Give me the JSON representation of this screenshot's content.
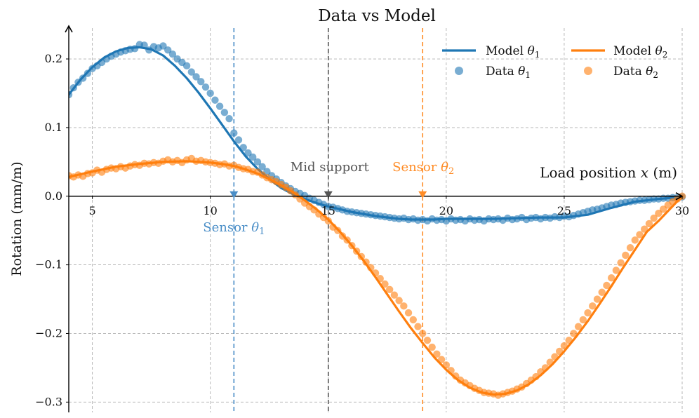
{
  "chart_data": {
    "type": "line",
    "title": "Data vs Model",
    "xlabel": "Load position x (m)",
    "xlabel_parts": [
      "Load position ",
      "x",
      " (m)"
    ],
    "ylabel": "Rotation (mm/m)",
    "xlim": [
      4,
      30
    ],
    "ylim": [
      -0.315,
      0.245
    ],
    "x_ticks": [
      5,
      10,
      15,
      20,
      25,
      30
    ],
    "y_ticks": [
      -0.3,
      -0.2,
      -0.1,
      0.0,
      0.1,
      0.2
    ],
    "y_tick_labels": [
      "−0.3",
      "−0.2",
      "−0.1",
      "0.0",
      "0.1",
      "0.2"
    ],
    "grid": true,
    "legend_placement": "top-right",
    "series": [
      {
        "name": "Model θ1",
        "label_base": "Model ",
        "label_sub": "1",
        "kind": "line",
        "color": "#1f77b4",
        "x": [
          4,
          4.5,
          5,
          5.5,
          6,
          6.5,
          7,
          7.5,
          8,
          8.5,
          9,
          9.5,
          10,
          10.5,
          11,
          11.5,
          12,
          12.5,
          13,
          13.5,
          14,
          14.5,
          15,
          15.5,
          16,
          16.5,
          17,
          17.5,
          18,
          18.5,
          19,
          19.5,
          20,
          21,
          22,
          23,
          24,
          25,
          26,
          27,
          28,
          29,
          30
        ],
        "y": [
          0.148,
          0.17,
          0.188,
          0.202,
          0.211,
          0.216,
          0.217,
          0.214,
          0.205,
          0.19,
          0.172,
          0.151,
          0.128,
          0.104,
          0.08,
          0.058,
          0.04,
          0.025,
          0.012,
          0.003,
          -0.004,
          -0.01,
          -0.015,
          -0.019,
          -0.023,
          -0.026,
          -0.029,
          -0.031,
          -0.033,
          -0.034,
          -0.034,
          -0.034,
          -0.033,
          -0.033,
          -0.033,
          -0.032,
          -0.031,
          -0.031,
          -0.027,
          -0.017,
          -0.008,
          -0.004,
          -0.001
        ]
      },
      {
        "name": "Data θ1",
        "label_base": "Data ",
        "label_sub": "1",
        "kind": "scatter",
        "color": "#1f77b4",
        "x": [
          4.0,
          4.2,
          4.4,
          4.6,
          4.8,
          5.0,
          5.2,
          5.4,
          5.6,
          5.8,
          6.0,
          6.2,
          6.4,
          6.6,
          6.8,
          7.0,
          7.2,
          7.4,
          7.6,
          7.8,
          8.0,
          8.2,
          8.4,
          8.6,
          8.8,
          9.0,
          9.2,
          9.4,
          9.6,
          9.8,
          10.0,
          10.2,
          10.4,
          10.6,
          10.8,
          11.0,
          11.2,
          11.4,
          11.6,
          11.8,
          12.0,
          12.2,
          12.4,
          12.6,
          12.8,
          13.0,
          13.2,
          13.4,
          13.6,
          13.8,
          14.0,
          14.2,
          14.4,
          14.6,
          14.8,
          15.0,
          15.2,
          15.4,
          15.6,
          15.8,
          16.0,
          16.2,
          16.4,
          16.6,
          16.8,
          17.0,
          17.2,
          17.4,
          17.6,
          17.8,
          18.0,
          18.2,
          18.4,
          18.6,
          18.8,
          19.0,
          19.2,
          19.4,
          19.6,
          19.8,
          20.0,
          20.2,
          20.4,
          20.6,
          20.8,
          21.0,
          21.2,
          21.4,
          21.6,
          21.8,
          22.0,
          22.2,
          22.4,
          22.6,
          22.8,
          23.0,
          23.2,
          23.4,
          23.6,
          23.8,
          24.0,
          24.2,
          24.4,
          24.6,
          24.8,
          25.0,
          25.2,
          25.4,
          25.6,
          25.8,
          26.0,
          26.2,
          26.4,
          26.6,
          26.8,
          27.0,
          27.2,
          27.4,
          27.6,
          27.8,
          28.0,
          28.2,
          28.4,
          28.6,
          28.8,
          29.0,
          29.2,
          29.4,
          29.6,
          29.8,
          30.0
        ],
        "y": [
          0.148,
          0.158,
          0.166,
          0.172,
          0.179,
          0.186,
          0.19,
          0.195,
          0.2,
          0.204,
          0.207,
          0.21,
          0.212,
          0.214,
          0.215,
          0.221,
          0.22,
          0.213,
          0.218,
          0.216,
          0.219,
          0.213,
          0.207,
          0.2,
          0.195,
          0.19,
          0.181,
          0.174,
          0.167,
          0.159,
          0.15,
          0.14,
          0.131,
          0.122,
          0.113,
          0.092,
          0.082,
          0.071,
          0.063,
          0.057,
          0.05,
          0.043,
          0.036,
          0.03,
          0.025,
          0.02,
          0.015,
          0.011,
          0.007,
          0.004,
          0.001,
          -0.003,
          -0.006,
          -0.009,
          -0.012,
          -0.015,
          -0.016,
          -0.018,
          -0.02,
          -0.022,
          -0.023,
          -0.024,
          -0.025,
          -0.026,
          -0.027,
          -0.028,
          -0.029,
          -0.03,
          -0.031,
          -0.032,
          -0.033,
          -0.032,
          -0.034,
          -0.033,
          -0.035,
          -0.034,
          -0.036,
          -0.033,
          -0.035,
          -0.034,
          -0.036,
          -0.033,
          -0.035,
          -0.034,
          -0.036,
          -0.033,
          -0.035,
          -0.034,
          -0.036,
          -0.033,
          -0.034,
          -0.033,
          -0.035,
          -0.032,
          -0.034,
          -0.033,
          -0.031,
          -0.034,
          -0.032,
          -0.031,
          -0.033,
          -0.031,
          -0.032,
          -0.03,
          -0.031,
          -0.029,
          -0.03,
          -0.028,
          -0.026,
          -0.024,
          -0.022,
          -0.02,
          -0.019,
          -0.017,
          -0.015,
          -0.013,
          -0.012,
          -0.01,
          -0.009,
          -0.008,
          -0.007,
          -0.006,
          -0.006,
          -0.005,
          -0.004,
          -0.004,
          -0.003,
          -0.003,
          -0.002,
          -0.002,
          -0.001
        ]
      },
      {
        "name": "Model θ2",
        "label_base": "Model ",
        "label_sub": "2",
        "kind": "line",
        "color": "#ff7f0e",
        "x": [
          4,
          5,
          6,
          7,
          8,
          9,
          10,
          10.5,
          11,
          11.5,
          12,
          12.5,
          13,
          13.5,
          14,
          14.5,
          15,
          15.5,
          16,
          16.5,
          17,
          17.5,
          18,
          18.5,
          19,
          19.5,
          20,
          20.5,
          21,
          21.5,
          22,
          22.5,
          23,
          23.5,
          24,
          24.5,
          25,
          25.5,
          26,
          26.5,
          27,
          27.5,
          28,
          28.5,
          29,
          29.5,
          30
        ],
        "y": [
          0.028,
          0.036,
          0.043,
          0.047,
          0.05,
          0.051,
          0.049,
          0.047,
          0.044,
          0.039,
          0.033,
          0.025,
          0.016,
          0.006,
          -0.006,
          -0.019,
          -0.034,
          -0.052,
          -0.072,
          -0.094,
          -0.118,
          -0.143,
          -0.168,
          -0.192,
          -0.214,
          -0.235,
          -0.253,
          -0.268,
          -0.279,
          -0.286,
          -0.289,
          -0.288,
          -0.283,
          -0.274,
          -0.261,
          -0.245,
          -0.226,
          -0.205,
          -0.182,
          -0.157,
          -0.131,
          -0.104,
          -0.078,
          -0.052,
          -0.036,
          -0.018,
          0.0
        ]
      },
      {
        "name": "Data θ2",
        "label_base": "Data ",
        "label_sub": "2",
        "kind": "scatter",
        "color": "#ff7f0e",
        "x": [
          4.0,
          4.2,
          4.4,
          4.6,
          4.8,
          5.0,
          5.2,
          5.4,
          5.6,
          5.8,
          6.0,
          6.2,
          6.4,
          6.6,
          6.8,
          7.0,
          7.2,
          7.4,
          7.6,
          7.8,
          8.0,
          8.2,
          8.4,
          8.6,
          8.8,
          9.0,
          9.2,
          9.4,
          9.6,
          9.8,
          10.0,
          10.2,
          10.4,
          10.6,
          10.8,
          11.0,
          11.2,
          11.4,
          11.6,
          11.8,
          12.0,
          12.2,
          12.4,
          12.6,
          12.8,
          13.0,
          13.2,
          13.4,
          13.6,
          13.8,
          14.0,
          14.2,
          14.4,
          14.6,
          14.8,
          15.0,
          15.2,
          15.4,
          15.6,
          15.8,
          16.0,
          16.2,
          16.4,
          16.6,
          16.8,
          17.0,
          17.2,
          17.4,
          17.6,
          17.8,
          18.0,
          18.2,
          18.4,
          18.6,
          18.8,
          19.0,
          19.2,
          19.4,
          19.6,
          19.8,
          20.0,
          20.2,
          20.4,
          20.6,
          20.8,
          21.0,
          21.2,
          21.4,
          21.6,
          21.8,
          22.0,
          22.2,
          22.4,
          22.6,
          22.8,
          23.0,
          23.2,
          23.4,
          23.6,
          23.8,
          24.0,
          24.2,
          24.4,
          24.6,
          24.8,
          25.0,
          25.2,
          25.4,
          25.6,
          25.8,
          26.0,
          26.2,
          26.4,
          26.6,
          26.8,
          27.0,
          27.2,
          27.4,
          27.6,
          27.8,
          28.0,
          28.2,
          28.4,
          28.6,
          28.8,
          29.0,
          29.2,
          29.4,
          29.6,
          29.8,
          30.0
        ],
        "y": [
          0.03,
          0.028,
          0.031,
          0.029,
          0.033,
          0.034,
          0.038,
          0.035,
          0.039,
          0.041,
          0.04,
          0.043,
          0.041,
          0.044,
          0.046,
          0.045,
          0.048,
          0.047,
          0.049,
          0.048,
          0.051,
          0.053,
          0.05,
          0.052,
          0.049,
          0.053,
          0.055,
          0.051,
          0.052,
          0.05,
          0.049,
          0.048,
          0.046,
          0.047,
          0.044,
          0.045,
          0.042,
          0.04,
          0.039,
          0.036,
          0.035,
          0.031,
          0.027,
          0.024,
          0.021,
          0.017,
          0.013,
          0.008,
          0.002,
          -0.004,
          -0.01,
          -0.015,
          -0.02,
          -0.026,
          -0.031,
          -0.036,
          -0.045,
          -0.05,
          -0.058,
          -0.064,
          -0.072,
          -0.08,
          -0.088,
          -0.096,
          -0.104,
          -0.112,
          -0.12,
          -0.128,
          -0.136,
          -0.144,
          -0.152,
          -0.16,
          -0.17,
          -0.18,
          -0.19,
          -0.2,
          -0.21,
          -0.22,
          -0.23,
          -0.238,
          -0.246,
          -0.254,
          -0.262,
          -0.268,
          -0.272,
          -0.276,
          -0.28,
          -0.283,
          -0.286,
          -0.287,
          -0.288,
          -0.29,
          -0.288,
          -0.286,
          -0.284,
          -0.281,
          -0.278,
          -0.273,
          -0.268,
          -0.263,
          -0.256,
          -0.25,
          -0.242,
          -0.234,
          -0.226,
          -0.218,
          -0.21,
          -0.2,
          -0.19,
          -0.18,
          -0.17,
          -0.16,
          -0.15,
          -0.14,
          -0.13,
          -0.119,
          -0.108,
          -0.097,
          -0.086,
          -0.075,
          -0.064,
          -0.056,
          -0.048,
          -0.04,
          -0.032,
          -0.025,
          -0.019,
          -0.013,
          -0.008,
          -0.004,
          0.0
        ]
      }
    ],
    "annotations": [
      {
        "kind": "vline",
        "x": 11,
        "color": "#4a8ec7",
        "label_base": "Sensor ",
        "label_sub": "1",
        "label_position": "below-axis",
        "marker": "down-triangle"
      },
      {
        "kind": "vline",
        "x": 15,
        "color": "#555555",
        "label": "Mid support",
        "label_position": "above-axis",
        "marker": "down-triangle"
      },
      {
        "kind": "vline",
        "x": 19,
        "color": "#ff8c26",
        "label_base": "Sensor ",
        "label_sub": "2",
        "label_position": "above-axis",
        "marker": "down-triangle"
      }
    ]
  }
}
